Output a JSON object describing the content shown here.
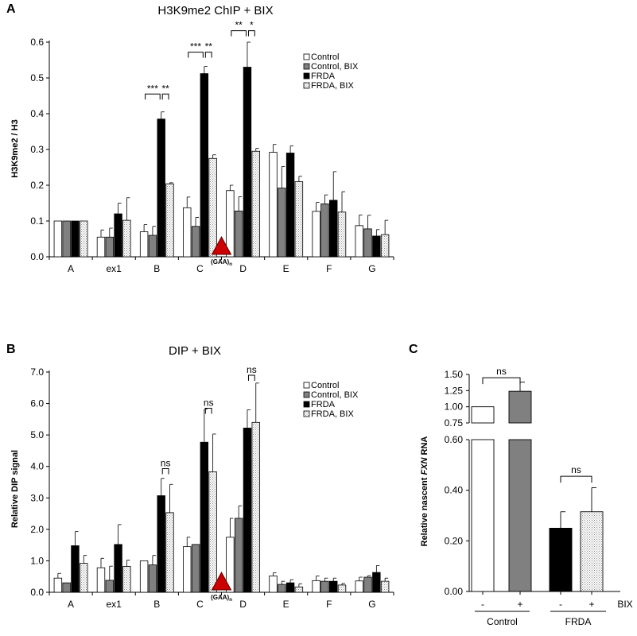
{
  "chart_data": [
    {
      "panel": "A",
      "type": "bar",
      "title": "H3K9me2 ChIP + BIX",
      "ylabel": "H3K9me2 / H3",
      "xlabel": "",
      "ylim": [
        0,
        0.6
      ],
      "yticks": [
        "0.0",
        "0.1",
        "0.2",
        "0.3",
        "0.4",
        "0.5",
        "0.6"
      ],
      "categories": [
        "A",
        "ex1",
        "B",
        "C",
        "D",
        "E",
        "F",
        "G"
      ],
      "series": [
        {
          "name": "Control",
          "color": "#ffffff",
          "fill": "solid",
          "values": [
            0.1,
            0.055,
            0.07,
            0.137,
            0.185,
            0.292,
            0.127,
            0.087
          ],
          "errors": [
            0.0,
            0.02,
            0.02,
            0.03,
            0.015,
            0.022,
            0.025,
            0.03
          ]
        },
        {
          "name": "Control, BIX",
          "color": "#808080",
          "fill": "solid",
          "values": [
            0.1,
            0.055,
            0.06,
            0.085,
            0.128,
            0.192,
            0.148,
            0.078
          ],
          "errors": [
            0.0,
            0.025,
            0.025,
            0.025,
            0.04,
            0.06,
            0.025,
            0.038
          ]
        },
        {
          "name": "FRDA",
          "color": "#000000",
          "fill": "solid",
          "values": [
            0.1,
            0.12,
            0.385,
            0.512,
            0.53,
            0.29,
            0.158,
            0.058
          ],
          "errors": [
            0.0,
            0.03,
            0.02,
            0.02,
            0.07,
            0.02,
            0.08,
            0.018
          ]
        },
        {
          "name": "FRDA, BIX",
          "color": "#cccccc",
          "fill": "dotted",
          "values": [
            0.1,
            0.102,
            0.204,
            0.275,
            0.295,
            0.21,
            0.125,
            0.062
          ],
          "errors": [
            0.0,
            0.063,
            0.003,
            0.01,
            0.008,
            0.015,
            0.057,
            0.04
          ]
        }
      ],
      "significance": [
        {
          "category": "B",
          "pairs": [
            [
              "Control",
              "FRDA",
              "***"
            ],
            [
              "FRDA",
              "FRDA, BIX",
              "**"
            ]
          ],
          "level": 0.455
        },
        {
          "category": "C",
          "pairs": [
            [
              "Control",
              "FRDA",
              "***"
            ],
            [
              "FRDA",
              "FRDA, BIX",
              "**"
            ]
          ],
          "level": 0.572
        },
        {
          "category": "D",
          "pairs": [
            [
              "Control",
              "FRDA",
              "**"
            ],
            [
              "FRDA",
              "FRDA, BIX",
              "*"
            ]
          ],
          "level": 0.632
        }
      ],
      "marker_label": "(GAA)",
      "marker_sub": "n",
      "legend_position": "top-right",
      "grid": false
    },
    {
      "panel": "B",
      "type": "bar",
      "title": "DIP + BIX",
      "ylabel": "Relative DIP signal",
      "xlabel": "",
      "ylim": [
        0,
        7
      ],
      "yticks": [
        "0.0",
        "1.0",
        "2.0",
        "3.0",
        "4.0",
        "5.0",
        "6.0",
        "7.0"
      ],
      "categories": [
        "A",
        "ex1",
        "B",
        "C",
        "D",
        "E",
        "F",
        "G"
      ],
      "series": [
        {
          "name": "Control",
          "color": "#ffffff",
          "fill": "solid",
          "values": [
            0.45,
            0.78,
            1.0,
            1.45,
            1.75,
            0.52,
            0.37,
            0.36
          ],
          "errors": [
            0.15,
            0.3,
            0.0,
            0.3,
            0.6,
            0.1,
            0.15,
            0.12
          ]
        },
        {
          "name": "Control, BIX",
          "color": "#808080",
          "fill": "solid",
          "values": [
            0.3,
            0.38,
            0.87,
            1.52,
            2.35,
            0.25,
            0.35,
            0.48
          ],
          "errors": [
            0.0,
            0.45,
            0.3,
            0.0,
            0.4,
            0.1,
            0.1,
            0.05
          ]
        },
        {
          "name": "FRDA",
          "color": "#000000",
          "fill": "solid",
          "values": [
            1.48,
            1.52,
            3.07,
            4.77,
            5.22,
            0.3,
            0.35,
            0.63
          ],
          "errors": [
            0.45,
            0.63,
            0.55,
            1.05,
            0.58,
            0.1,
            0.1,
            0.22
          ]
        },
        {
          "name": "FRDA, BIX",
          "color": "#cccccc",
          "fill": "dotted",
          "values": [
            0.92,
            0.82,
            2.53,
            3.83,
            5.4,
            0.17,
            0.23,
            0.35
          ],
          "errors": [
            0.25,
            0.2,
            0.9,
            1.2,
            1.25,
            0.1,
            0.05,
            0.1
          ]
        }
      ],
      "significance": [
        {
          "category": "B",
          "pairs": [
            [
              "FRDA",
              "FRDA, BIX",
              "ns"
            ]
          ],
          "level": 3.93
        },
        {
          "category": "C",
          "pairs": [
            [
              "FRDA",
              "FRDA, BIX",
              "ns"
            ]
          ],
          "level": 5.85
        },
        {
          "category": "D",
          "pairs": [
            [
              "FRDA",
              "FRDA, BIX",
              "ns"
            ]
          ],
          "level": 6.9
        }
      ],
      "marker_label": "(GAA)",
      "marker_sub": "n",
      "legend_position": "top-right",
      "grid": false
    },
    {
      "panel": "C",
      "type": "bar",
      "title": "",
      "ylabel_pre": "Relative nascent ",
      "ylabel_italic": "FXN",
      "ylabel_post": " RNA",
      "xlabel": "",
      "axis_break": true,
      "lower_ylim": [
        0,
        0.6
      ],
      "lower_yticks": [
        "0.00",
        "0.20",
        "0.40",
        "0.60"
      ],
      "upper_ylim": [
        0.75,
        1.5
      ],
      "upper_yticks": [
        "0.75",
        "1.00",
        "1.25",
        "1.50"
      ],
      "bars": [
        {
          "treatment": "-",
          "group": "Control",
          "value": 1.0,
          "error": 0.0,
          "color": "#ffffff",
          "fill": "solid"
        },
        {
          "treatment": "+",
          "group": "Control",
          "value": 1.24,
          "error": 0.14,
          "color": "#808080",
          "fill": "solid"
        },
        {
          "treatment": "-",
          "group": "FRDA",
          "value": 0.25,
          "error": 0.065,
          "color": "#000000",
          "fill": "solid"
        },
        {
          "treatment": "+",
          "group": "FRDA",
          "value": 0.315,
          "error": 0.095,
          "color": "#cccccc",
          "fill": "dotted"
        }
      ],
      "treatment_label": "BIX",
      "groups": [
        "Control",
        "FRDA"
      ],
      "significance": [
        {
          "pair": [
            0,
            1
          ],
          "label": "ns"
        },
        {
          "pair": [
            2,
            3
          ],
          "label": "ns"
        }
      ],
      "grid": false
    }
  ],
  "panel_letters": [
    "A",
    "B",
    "C"
  ]
}
